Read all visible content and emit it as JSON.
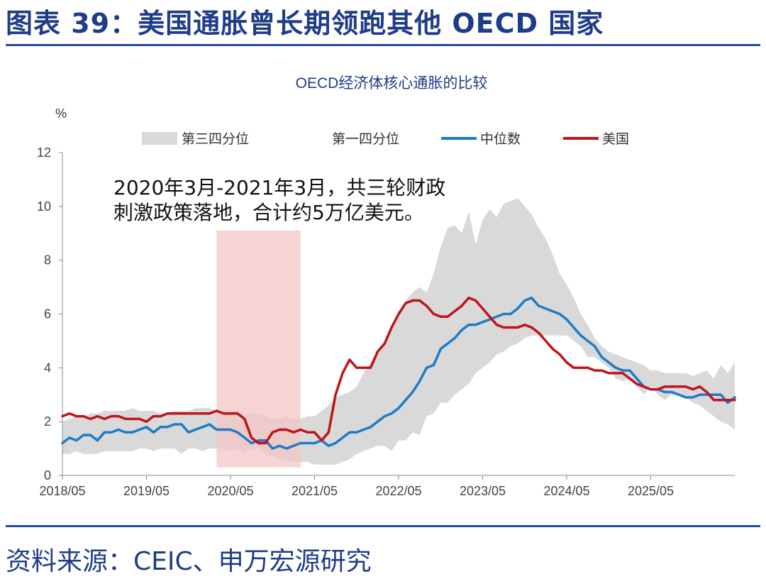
{
  "figure_title": "图表 39：美国通胀曾长期领跑其他 OECD 国家",
  "source": "资料来源：CEIC、申万宏源研究",
  "colors": {
    "median": "#1f7cc4",
    "us": "#c0141c",
    "band": "#d9d9d9",
    "shade": "#f4c6c6",
    "title": "#1f3c88"
  },
  "chart_data": {
    "type": "line",
    "title": "OECD经济体核心通胀的比较",
    "unit_label": "%",
    "ylim": [
      0,
      12
    ],
    "y_ticks": [
      "0",
      "2",
      "4",
      "6",
      "8",
      "10",
      "12"
    ],
    "x_tick_labels": [
      "2018/05",
      "2019/05",
      "2020/05",
      "2021/05",
      "2022/05",
      "2023/05",
      "2024/05",
      "2025/05"
    ],
    "x_start": "2018-05",
    "legend": [
      "第三四分位",
      "第一四分位",
      "中位数",
      "美国"
    ],
    "annotation": [
      "2020年3月-2021年3月，共三轮财政",
      "刺激政策落地，合计约5万亿美元。"
    ],
    "highlight_period": [
      "2020-03",
      "2021-03"
    ],
    "series": [
      {
        "name": "第三四分位",
        "values": [
          2.0,
          2.1,
          2.2,
          2.2,
          2.3,
          2.3,
          2.4,
          2.4,
          2.4,
          2.4,
          2.5,
          2.4,
          2.4,
          2.4,
          2.3,
          2.3,
          2.4,
          2.4,
          2.4,
          2.5,
          2.5,
          2.5,
          2.4,
          2.4,
          2.4,
          2.4,
          2.3,
          2.3,
          2.3,
          2.2,
          2.1,
          2.1,
          2.2,
          2.1,
          2.1,
          2.2,
          2.2,
          2.4,
          2.6,
          2.9,
          3.0,
          3.1,
          3.3,
          3.8,
          4.2,
          4.6,
          5.0,
          5.4,
          6.0,
          6.5,
          6.8,
          7.0,
          6.8,
          7.5,
          8.5,
          9.2,
          9.3,
          9.0,
          9.8,
          8.6,
          9.5,
          9.9,
          9.6,
          10.1,
          10.2,
          10.3,
          10.0,
          9.7,
          9.2,
          8.8,
          8.2,
          7.5,
          7.1,
          6.6,
          6.0,
          5.6,
          5.1,
          4.8,
          4.6,
          4.5,
          4.4,
          4.3,
          4.2,
          4.1,
          3.9,
          3.9,
          3.8,
          3.8,
          3.8,
          3.8,
          3.7,
          3.8,
          3.9,
          3.6,
          4.1,
          3.8,
          4.2
        ]
      },
      {
        "name": "第一四分位",
        "values": [
          0.8,
          0.8,
          0.9,
          0.8,
          0.8,
          0.8,
          0.9,
          0.9,
          0.9,
          0.9,
          0.9,
          1.0,
          1.0,
          0.9,
          1.0,
          1.0,
          1.0,
          0.8,
          1.0,
          1.0,
          0.9,
          1.0,
          1.0,
          1.0,
          0.9,
          1.0,
          0.8,
          1.0,
          1.0,
          0.8,
          0.7,
          0.6,
          0.6,
          0.5,
          0.5,
          0.5,
          0.4,
          0.4,
          0.4,
          0.4,
          0.5,
          0.6,
          0.8,
          0.9,
          1.0,
          1.1,
          1.1,
          0.9,
          1.3,
          1.3,
          1.6,
          1.5,
          2.2,
          2.3,
          2.7,
          2.7,
          3.0,
          3.2,
          3.4,
          3.8,
          4.0,
          4.2,
          4.5,
          4.6,
          4.8,
          4.9,
          5.1,
          5.2,
          5.2,
          5.2,
          5.2,
          5.2,
          5.2,
          5.0,
          4.8,
          4.4,
          4.4,
          4.2,
          4.0,
          3.6,
          3.5,
          3.6,
          3.3,
          3.0,
          3.3,
          3.0,
          2.8,
          3.0,
          3.0,
          2.9,
          2.7,
          2.6,
          2.4,
          2.2,
          2.0,
          1.9,
          1.7
        ]
      },
      {
        "name": "中位数",
        "values": [
          1.2,
          1.4,
          1.3,
          1.5,
          1.5,
          1.3,
          1.6,
          1.6,
          1.7,
          1.6,
          1.6,
          1.7,
          1.8,
          1.6,
          1.8,
          1.8,
          1.9,
          1.9,
          1.6,
          1.7,
          1.8,
          1.9,
          1.7,
          1.7,
          1.7,
          1.6,
          1.4,
          1.2,
          1.3,
          1.3,
          1.0,
          1.1,
          1.0,
          1.1,
          1.2,
          1.2,
          1.2,
          1.3,
          1.1,
          1.2,
          1.4,
          1.6,
          1.6,
          1.7,
          1.8,
          2.0,
          2.2,
          2.3,
          2.5,
          2.8,
          3.1,
          3.5,
          4.0,
          4.1,
          4.7,
          4.9,
          5.1,
          5.4,
          5.6,
          5.6,
          5.7,
          5.8,
          5.9,
          6.0,
          6.0,
          6.2,
          6.5,
          6.6,
          6.3,
          6.2,
          6.1,
          6.0,
          5.8,
          5.5,
          5.2,
          5.0,
          4.8,
          4.4,
          4.2,
          4.0,
          3.9,
          3.9,
          3.6,
          3.3,
          3.2,
          3.2,
          3.1,
          3.1,
          3.0,
          2.9,
          2.9,
          3.0,
          3.0,
          3.0,
          3.0,
          2.7,
          2.9
        ]
      },
      {
        "name": "美国",
        "values": [
          2.2,
          2.3,
          2.2,
          2.2,
          2.1,
          2.2,
          2.1,
          2.2,
          2.2,
          2.1,
          2.1,
          2.1,
          2.0,
          2.2,
          2.2,
          2.3,
          2.3,
          2.3,
          2.3,
          2.3,
          2.3,
          2.3,
          2.4,
          2.3,
          2.3,
          2.3,
          2.1,
          1.4,
          1.2,
          1.2,
          1.6,
          1.7,
          1.7,
          1.6,
          1.7,
          1.6,
          1.6,
          1.3,
          1.6,
          3.0,
          3.8,
          4.3,
          4.0,
          4.0,
          4.0,
          4.6,
          4.9,
          5.5,
          6.0,
          6.4,
          6.5,
          6.5,
          6.3,
          6.0,
          5.9,
          5.9,
          6.1,
          6.3,
          6.6,
          6.5,
          6.2,
          5.9,
          5.6,
          5.5,
          5.5,
          5.5,
          5.6,
          5.5,
          5.3,
          5.0,
          4.7,
          4.5,
          4.2,
          4.0,
          4.0,
          4.0,
          3.9,
          3.9,
          3.8,
          3.8,
          3.8,
          3.6,
          3.4,
          3.3,
          3.2,
          3.2,
          3.3,
          3.3,
          3.3,
          3.3,
          3.2,
          3.3,
          3.1,
          2.8,
          2.8,
          2.8,
          2.8
        ]
      }
    ]
  }
}
